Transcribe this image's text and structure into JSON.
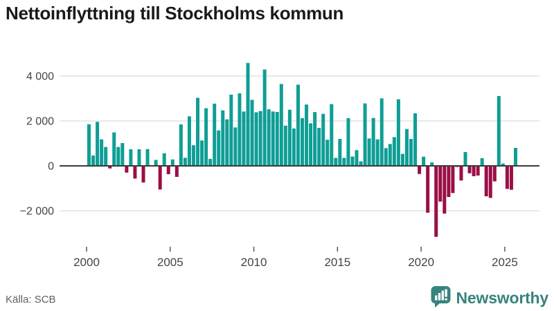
{
  "header": {
    "title": "Nettoinflyttning till Stockholms kommun"
  },
  "footer": {
    "source": "Källa: SCB",
    "brand": "Newsworthy"
  },
  "colors": {
    "positive": "#0F9E96",
    "negative": "#9B0E46",
    "brand": "#37837E",
    "grid": "#DCDCDC",
    "zero_line": "#3A3A3A",
    "axis_text": "#444444",
    "title_text": "#1A1A1A",
    "source_text": "#5F5F5F"
  },
  "chart_data": {
    "type": "bar",
    "title": "Nettoinflyttning till Stockholms kommun",
    "frequency": "quarterly",
    "start": "2000Q1",
    "end": "2025Q3",
    "values": [
      1855,
      460,
      1960,
      1180,
      840,
      -115,
      1490,
      840,
      1015,
      -300,
      740,
      -565,
      740,
      -740,
      745,
      30,
      265,
      -1055,
      560,
      -370,
      285,
      -490,
      1845,
      360,
      2205,
      920,
      3030,
      1130,
      2565,
      310,
      2770,
      1580,
      2470,
      2070,
      3170,
      1710,
      3230,
      2420,
      4580,
      2940,
      2385,
      2440,
      4290,
      2520,
      2420,
      2400,
      3645,
      1790,
      2500,
      1665,
      3615,
      2125,
      2730,
      1895,
      2395,
      1690,
      2315,
      1165,
      2750,
      355,
      1200,
      355,
      2125,
      415,
      700,
      200,
      2780,
      1220,
      2130,
      1180,
      3005,
      790,
      975,
      1280,
      2965,
      535,
      1640,
      1200,
      2340,
      -360,
      410,
      -2085,
      155,
      -3160,
      -1590,
      -2125,
      -1385,
      -1210,
      -50,
      -650,
      615,
      -330,
      -460,
      -430,
      340,
      -1355,
      -1425,
      -690,
      3110,
      105,
      -1025,
      -1065,
      800
    ],
    "x_tick_years": [
      2000,
      2005,
      2010,
      2015,
      2020,
      2025
    ],
    "x_tick_labels": [
      "2000",
      "2005",
      "2010",
      "2015",
      "2020",
      "2025"
    ],
    "y_ticks": [
      4000,
      2000,
      0,
      -2000
    ],
    "y_tick_labels": [
      "4 000",
      "2 000",
      "0",
      "−2 000"
    ],
    "ylim": [
      -3400,
      4800
    ],
    "grid": true,
    "legend": false
  }
}
